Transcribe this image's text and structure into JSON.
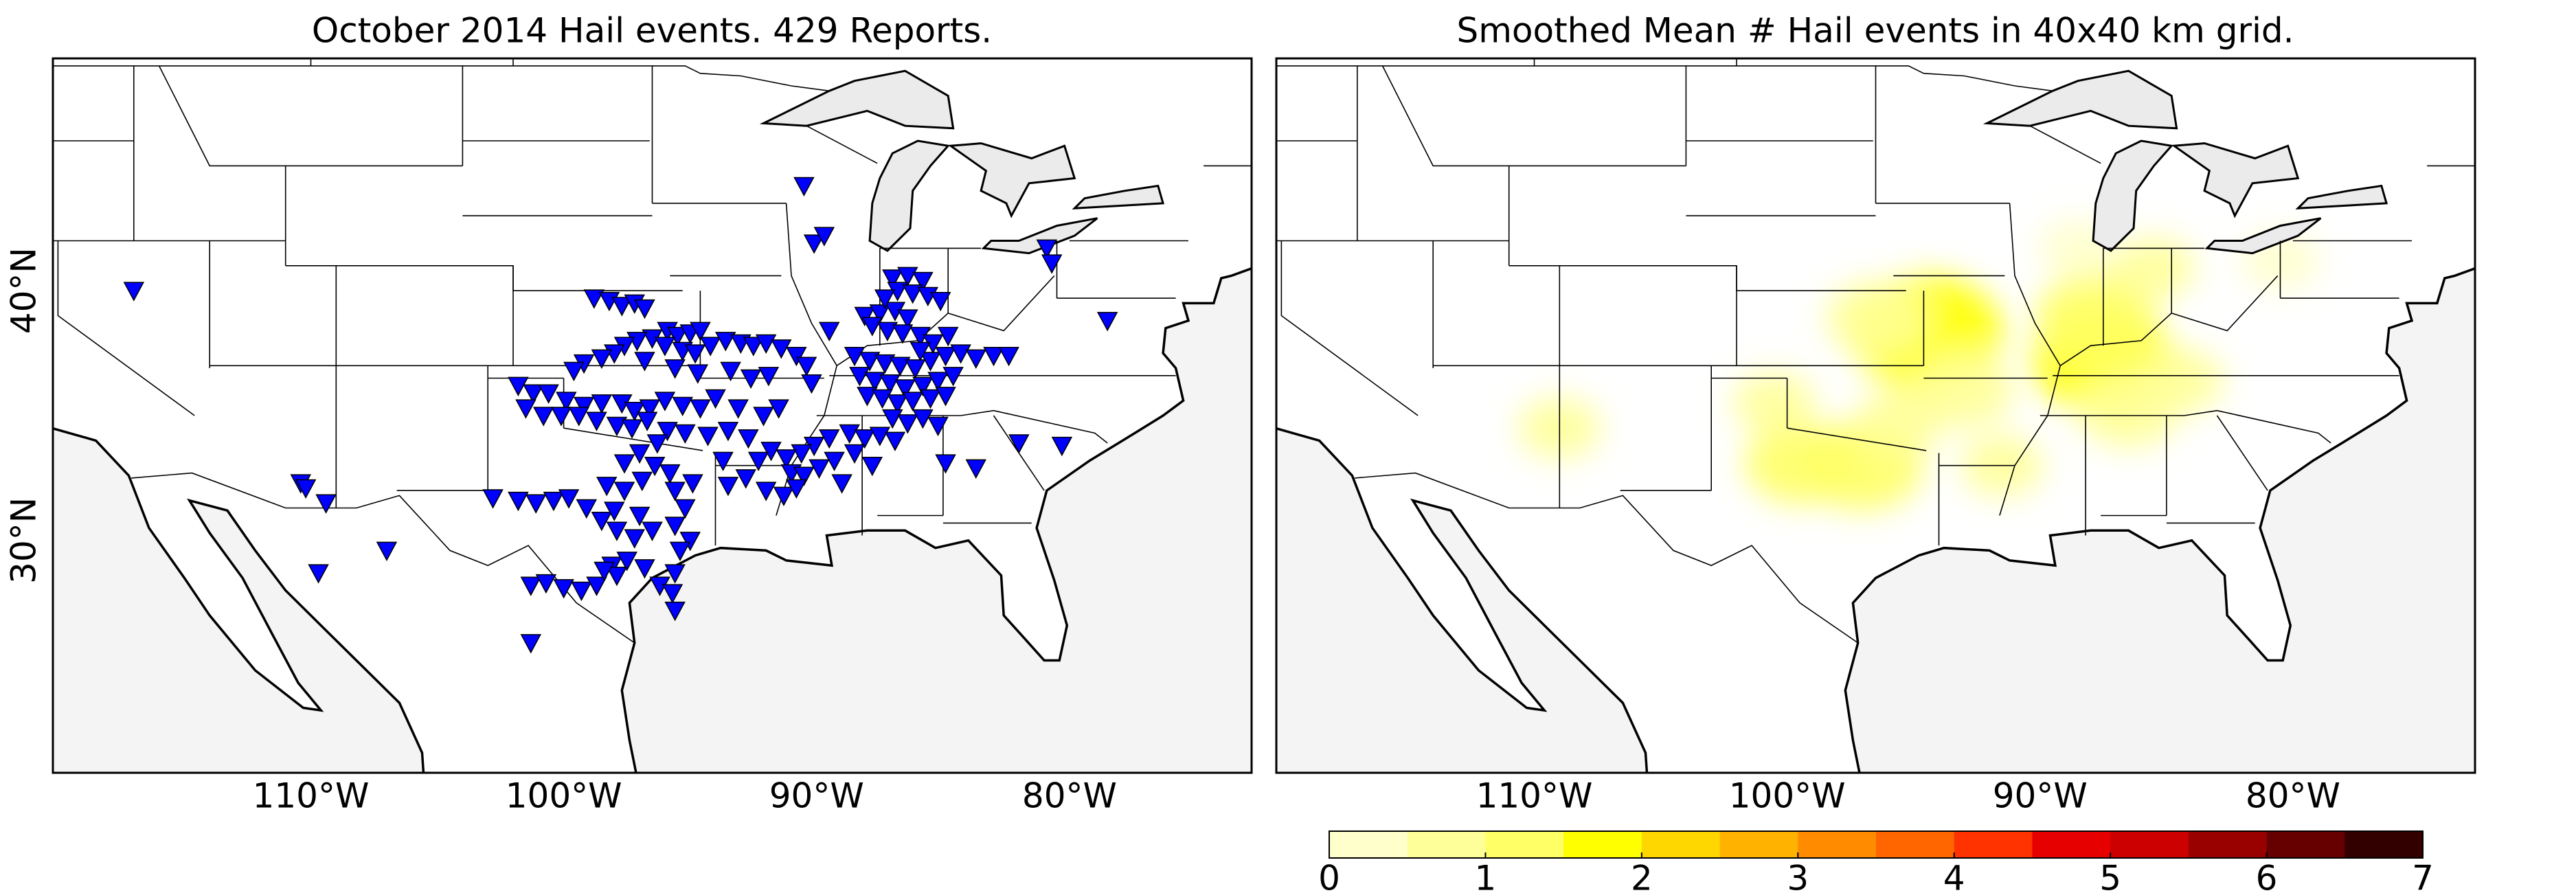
{
  "chart_data": [
    {
      "type": "scatter",
      "title": "October 2014 Hail events. 429 Reports.",
      "color": "#0000ff",
      "xlim": [
        -120.2,
        -72.8
      ],
      "ylim": [
        20.7,
        49.3
      ],
      "xticks": [
        {
          "value": -110,
          "label": "110°W"
        },
        {
          "value": -100,
          "label": "100°W"
        },
        {
          "value": -90,
          "label": "90°W"
        },
        {
          "value": -80,
          "label": "80°W"
        }
      ],
      "yticks": [
        {
          "value": 30,
          "label": "30°N"
        },
        {
          "value": 40,
          "label": "40°N"
        }
      ],
      "x": [
        -98.8,
        -98.2,
        -97.7,
        -97.2,
        -96.8,
        -95.9,
        -95.5,
        -95.0,
        -94.6,
        -96.5,
        -97.1,
        -97.6,
        -98.0,
        -98.5,
        -99.2,
        -99.6,
        -96.0,
        -95.3,
        -94.8,
        -94.2,
        -93.6,
        -93.0,
        -92.5,
        -92.0,
        -91.4,
        -90.8,
        -90.4,
        -96.8,
        -95.6,
        -94.7,
        -93.4,
        -92.6,
        -91.9,
        -101.8,
        -101.2,
        -100.6,
        -99.9,
        -99.2,
        -98.5,
        -97.7,
        -97.2,
        -96.6,
        -96.0,
        -95.3,
        -94.6,
        -101.5,
        -100.8,
        -100.1,
        -99.4,
        -98.7,
        -97.9,
        -97.3,
        -96.7,
        -95.9,
        -95.2,
        -94.3,
        -93.5,
        -92.7,
        -92.1,
        -91.5,
        -96.3,
        -97.0,
        -97.6,
        -96.4,
        -95.8,
        -96.9,
        -97.6,
        -98.3,
        -95.6,
        -94.9,
        -93.7,
        -95.2,
        -95.6,
        -95.0,
        -95.4,
        -101.3,
        -100.7,
        -100.0,
        -99.3,
        -98.7,
        -98.1,
        -97.5,
        -97.9,
        -96.8,
        -96.2,
        -95.6,
        -95.7,
        -95.6,
        -98.4,
        -101.8,
        -101.1,
        -100.4,
        -99.8,
        -99.1,
        -98.5,
        -97.9,
        -97.2,
        -96.5,
        -97.0,
        -98.0,
        -88.1,
        -87.5,
        -86.9,
        -86.4,
        -87.8,
        -87.2,
        -86.6,
        -85.9,
        -88.5,
        -87.9,
        -87.3,
        -86.7,
        -86.1,
        -85.5,
        -84.9,
        -84.3,
        -83.7,
        -83.0,
        -82.4,
        -88.3,
        -87.7,
        -87.1,
        -86.5,
        -85.8,
        -85.2,
        -84.6,
        -88.0,
        -87.4,
        -86.8,
        -86.2,
        -85.5,
        -84.9,
        -87.0,
        -86.4,
        -85.8,
        -85.2,
        -88.7,
        -88.1,
        -87.5,
        -86.9,
        -89.5,
        -90.1,
        -90.6,
        -91.2,
        -91.8,
        -92.3,
        -91.0,
        -90.5,
        -89.9,
        -89.3,
        -88.5,
        -92.8,
        -93.5,
        -92.0,
        -91.3,
        -90.8,
        -89.0,
        -87.8,
        -84.9,
        -87.0,
        -86.4,
        -85.8,
        -86.8,
        -86.2,
        -85.6,
        -85.1,
        -87.3,
        -85.4,
        -84.8,
        -85.9,
        -90.5,
        -90.1,
        -89.7,
        -80.9,
        -80.7,
        -78.5,
        -80.3,
        -82.0,
        -83.7,
        -117.0,
        -110.4,
        -110.2,
        -109.4,
        -109.7,
        -107.0,
        -102.8,
        -101.3,
        -89.5,
        -90.2,
        -93.1,
        -94.0
      ],
      "values": [
        39.7,
        39.6,
        39.4,
        39.5,
        39.3,
        38.4,
        38.2,
        38.3,
        38.4,
        38.1,
        38.0,
        37.8,
        37.5,
        37.3,
        37.1,
        36.8,
        37.8,
        37.6,
        37.5,
        37.8,
        38.0,
        37.9,
        37.8,
        37.9,
        37.7,
        37.4,
        37.0,
        37.2,
        36.9,
        36.7,
        36.8,
        36.5,
        36.6,
        36.2,
        35.9,
        35.9,
        35.6,
        35.4,
        35.5,
        35.5,
        35.2,
        35.3,
        35.6,
        35.4,
        35.3,
        35.3,
        35.0,
        35.0,
        35.0,
        34.8,
        34.6,
        34.5,
        34.8,
        34.4,
        34.3,
        34.2,
        34.4,
        34.1,
        35.0,
        35.3,
        33.9,
        33.5,
        33.1,
        33.0,
        32.7,
        32.4,
        32.0,
        32.2,
        32.0,
        32.3,
        33.2,
        31.3,
        30.6,
        30.0,
        29.6,
        28.2,
        28.3,
        28.1,
        28.0,
        28.2,
        29.0,
        29.2,
        28.6,
        28.9,
        28.2,
        28.7,
        27.9,
        27.2,
        28.8,
        31.6,
        31.5,
        31.6,
        31.7,
        31.3,
        30.8,
        30.4,
        30.1,
        30.4,
        31.0,
        31.2,
        39.0,
        39.1,
        39.2,
        38.9,
        38.6,
        38.4,
        38.3,
        38.2,
        37.4,
        37.2,
        37.1,
        37.0,
        36.9,
        37.2,
        37.4,
        37.5,
        37.3,
        37.4,
        37.4,
        36.6,
        36.4,
        36.3,
        36.1,
        36.2,
        36.4,
        36.6,
        35.8,
        35.7,
        35.5,
        35.6,
        35.7,
        35.8,
        34.9,
        34.7,
        34.9,
        34.6,
        34.3,
        34.1,
        34.2,
        34.0,
        34.1,
        33.8,
        33.5,
        33.3,
        33.6,
        33.2,
        32.7,
        32.6,
        32.9,
        33.2,
        33.5,
        32.5,
        32.2,
        32.0,
        31.8,
        32.1,
        32.3,
        33.0,
        33.1,
        40.5,
        40.6,
        40.4,
        40.0,
        39.9,
        39.8,
        39.6,
        39.7,
        37.9,
        38.2,
        37.6,
        44.2,
        41.9,
        42.2,
        41.7,
        41.1,
        38.8,
        33.8,
        33.9,
        32.9,
        40.0,
        32.3,
        32.1,
        31.5,
        28.7,
        29.6,
        31.7,
        25.9,
        38.4,
        36.3,
        35.3,
        35.7
      ]
    },
    {
      "type": "contour",
      "title": "Smoothed Mean # Hail events in 40x40 km grid.",
      "xlim": [
        -120.2,
        -72.8
      ],
      "ylim": [
        20.7,
        49.3
      ],
      "xticks": [
        {
          "value": -110,
          "label": "110°W"
        },
        {
          "value": -100,
          "label": "100°W"
        },
        {
          "value": -90,
          "label": "90°W"
        },
        {
          "value": -80,
          "label": "80°W"
        }
      ],
      "x": [
        -94.5,
        -87.5,
        -87.8,
        -97.0,
        -99.5,
        -93.0,
        -96.5,
        -86.5,
        -84.5,
        -95.5,
        -100.5,
        -109.0,
        -91.5,
        -88.5,
        -80.5,
        -85.5
      ],
      "y": [
        38.3,
        37.2,
        38.9,
        33.0,
        33.1,
        36.0,
        38.9,
        35.2,
        36.4,
        34.8,
        35.5,
        34.5,
        33.0,
        41.7,
        41.2,
        40.9
      ],
      "values": [
        1.8,
        1.6,
        1.2,
        1.2,
        1.0,
        0.8,
        0.8,
        0.8,
        0.6,
        0.6,
        0.5,
        0.5,
        0.5,
        0.4,
        0.4,
        0.5
      ],
      "colorbar_ticks": [
        0,
        1,
        2,
        3,
        4,
        5,
        6,
        7
      ],
      "colors": [
        "#ffffcc",
        "#ffff99",
        "#ffff66",
        "#ffff00",
        "#ffd700",
        "#ffb300",
        "#ff8c00",
        "#ff6600",
        "#ff3300",
        "#e60000",
        "#cc0000",
        "#990000",
        "#660000",
        "#330000"
      ]
    }
  ]
}
